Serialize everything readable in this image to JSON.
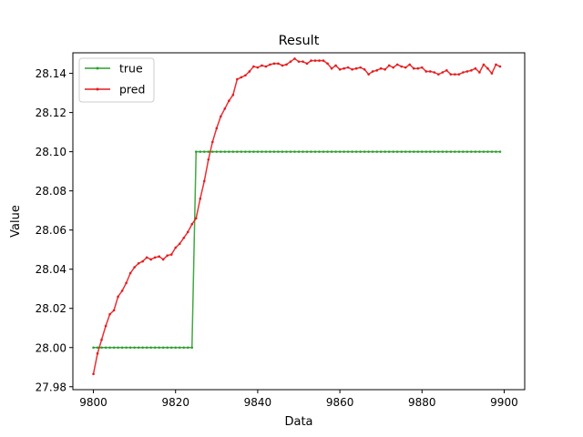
{
  "chart_data": {
    "type": "line",
    "title": "Result",
    "xlabel": "Data",
    "ylabel": "Value",
    "xlim": [
      9795,
      9905
    ],
    "ylim": [
      27.9785,
      28.1505
    ],
    "xticks": [
      9800,
      9820,
      9840,
      9860,
      9880,
      9900
    ],
    "yticks": [
      27.98,
      28.0,
      28.02,
      28.04,
      28.06,
      28.08,
      28.1,
      28.12,
      28.14
    ],
    "grid": false,
    "legend_position": "upper-left",
    "x": [
      9800,
      9801,
      9802,
      9803,
      9804,
      9805,
      9806,
      9807,
      9808,
      9809,
      9810,
      9811,
      9812,
      9813,
      9814,
      9815,
      9816,
      9817,
      9818,
      9819,
      9820,
      9821,
      9822,
      9823,
      9824,
      9825,
      9826,
      9827,
      9828,
      9829,
      9830,
      9831,
      9832,
      9833,
      9834,
      9835,
      9836,
      9837,
      9838,
      9839,
      9840,
      9841,
      9842,
      9843,
      9844,
      9845,
      9846,
      9847,
      9848,
      9849,
      9850,
      9851,
      9852,
      9853,
      9854,
      9855,
      9856,
      9857,
      9858,
      9859,
      9860,
      9861,
      9862,
      9863,
      9864,
      9865,
      9866,
      9867,
      9868,
      9869,
      9870,
      9871,
      9872,
      9873,
      9874,
      9875,
      9876,
      9877,
      9878,
      9879,
      9880,
      9881,
      9882,
      9883,
      9884,
      9885,
      9886,
      9887,
      9888,
      9889,
      9890,
      9891,
      9892,
      9893,
      9894,
      9895,
      9896,
      9897,
      9898,
      9899
    ],
    "series": [
      {
        "name": "true",
        "color": "#2ca02c",
        "values": [
          28.0,
          28.0,
          28.0,
          28.0,
          28.0,
          28.0,
          28.0,
          28.0,
          28.0,
          28.0,
          28.0,
          28.0,
          28.0,
          28.0,
          28.0,
          28.0,
          28.0,
          28.0,
          28.0,
          28.0,
          28.0,
          28.0,
          28.0,
          28.0,
          28.0,
          28.1,
          28.1,
          28.1,
          28.1,
          28.1,
          28.1,
          28.1,
          28.1,
          28.1,
          28.1,
          28.1,
          28.1,
          28.1,
          28.1,
          28.1,
          28.1,
          28.1,
          28.1,
          28.1,
          28.1,
          28.1,
          28.1,
          28.1,
          28.1,
          28.1,
          28.1,
          28.1,
          28.1,
          28.1,
          28.1,
          28.1,
          28.1,
          28.1,
          28.1,
          28.1,
          28.1,
          28.1,
          28.1,
          28.1,
          28.1,
          28.1,
          28.1,
          28.1,
          28.1,
          28.1,
          28.1,
          28.1,
          28.1,
          28.1,
          28.1,
          28.1,
          28.1,
          28.1,
          28.1,
          28.1,
          28.1,
          28.1,
          28.1,
          28.1,
          28.1,
          28.1,
          28.1,
          28.1,
          28.1,
          28.1,
          28.1,
          28.1,
          28.1,
          28.1,
          28.1,
          28.1,
          28.1,
          28.1,
          28.1,
          28.1
        ]
      },
      {
        "name": "pred",
        "color": "#e41a1c",
        "values": [
          27.9865,
          27.997,
          28.004,
          28.011,
          28.017,
          28.019,
          28.026,
          28.029,
          28.033,
          28.038,
          28.041,
          28.043,
          28.044,
          28.046,
          28.045,
          28.046,
          28.0465,
          28.045,
          28.047,
          28.0475,
          28.051,
          28.053,
          28.056,
          28.059,
          28.063,
          28.066,
          28.076,
          28.085,
          28.096,
          28.105,
          28.112,
          28.118,
          28.122,
          28.126,
          28.129,
          28.137,
          28.138,
          28.139,
          28.141,
          28.1435,
          28.143,
          28.144,
          28.1435,
          28.1445,
          28.145,
          28.145,
          28.144,
          28.1445,
          28.146,
          28.1475,
          28.146,
          28.146,
          28.145,
          28.1465,
          28.1465,
          28.1465,
          28.1465,
          28.145,
          28.1425,
          28.144,
          28.142,
          28.1425,
          28.143,
          28.142,
          28.1425,
          28.143,
          28.142,
          28.1395,
          28.141,
          28.1415,
          28.1425,
          28.142,
          28.144,
          28.143,
          28.1445,
          28.1435,
          28.143,
          28.1445,
          28.1425,
          28.1425,
          28.143,
          28.141,
          28.141,
          28.1405,
          28.1395,
          28.1405,
          28.1415,
          28.1395,
          28.1395,
          28.1395,
          28.1405,
          28.141,
          28.1415,
          28.1425,
          28.1405,
          28.1445,
          28.1425,
          28.14,
          28.1445,
          28.1435
        ]
      }
    ]
  }
}
